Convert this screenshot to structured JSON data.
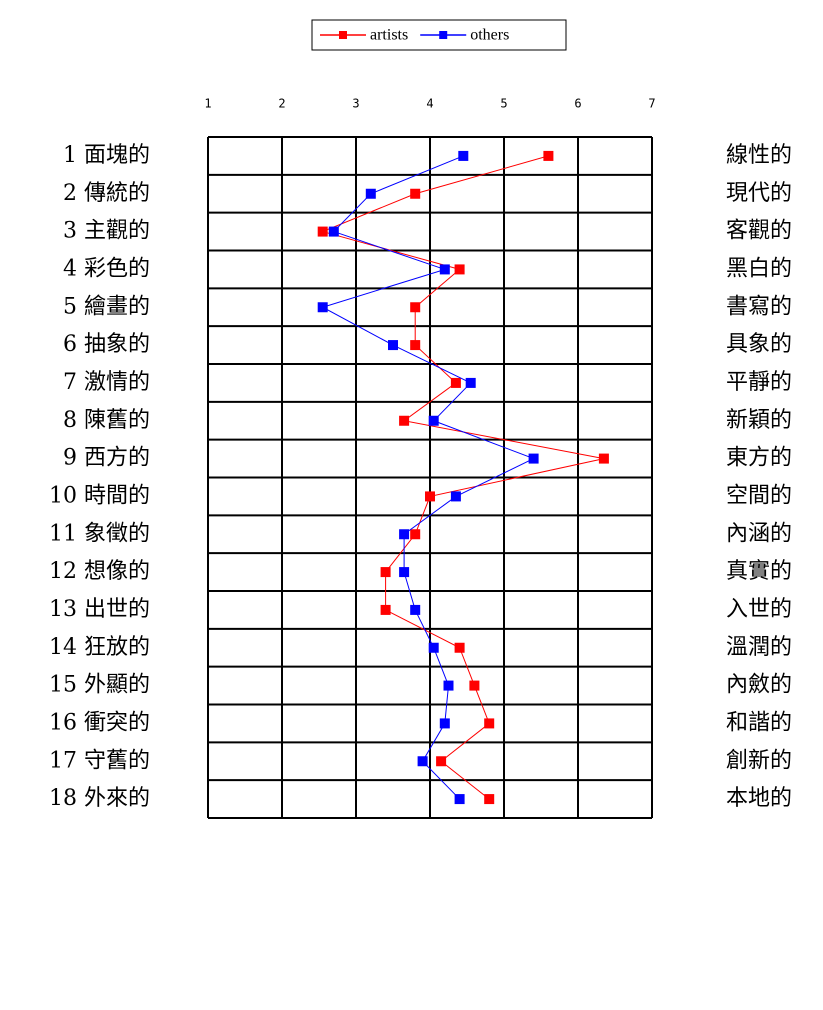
{
  "chart_data": {
    "type": "line",
    "left_labels": [
      "1 面塊的",
      "2 傳統的",
      "3 主觀的",
      "4 彩色的",
      "5 繪畫的",
      "6 抽象的",
      "7 激情的",
      "8 陳舊的",
      "9 西方的",
      "10 時間的",
      "11 象徵的",
      "12 想像的",
      "13 出世的",
      "14 狂放的",
      "15 外顯的",
      "16 衝突的",
      "17 守舊的",
      "18 外來的"
    ],
    "right_labels": [
      "線性的",
      "現代的",
      "客觀的",
      "黑白的",
      "書寫的",
      "具象的",
      "平靜的",
      "新穎的",
      "東方的",
      "空間的",
      "內涵的",
      "真實的",
      "入世的",
      "溫潤的",
      "內斂的",
      "和諧的",
      "創新的",
      "本地的"
    ],
    "series": [
      {
        "name": "artists",
        "color": "#ff0000",
        "values": [
          5.6,
          3.8,
          2.55,
          4.4,
          3.8,
          3.8,
          4.35,
          3.65,
          6.35,
          4.0,
          3.8,
          3.4,
          3.4,
          4.4,
          4.6,
          4.8,
          4.15,
          4.8
        ]
      },
      {
        "name": "others",
        "color": "#0000ff",
        "values": [
          4.45,
          3.2,
          2.7,
          4.2,
          2.55,
          3.5,
          4.55,
          4.05,
          5.4,
          4.35,
          3.65,
          3.65,
          3.8,
          4.05,
          4.25,
          4.2,
          3.9,
          4.4
        ]
      }
    ],
    "xlim": [
      1,
      7
    ],
    "xticks": [
      1,
      2,
      3,
      4,
      5,
      6,
      7
    ],
    "grid": true,
    "legend": "top"
  }
}
